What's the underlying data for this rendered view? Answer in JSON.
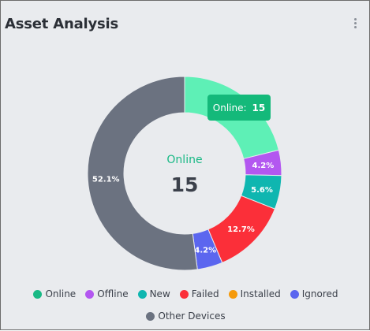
{
  "card": {
    "title": "Asset Analysis",
    "menu_icon": "kebab-menu-icon"
  },
  "center": {
    "label": "Online",
    "value": "15"
  },
  "tooltip": {
    "label": "Online:",
    "value": "15"
  },
  "chart_data": {
    "type": "pie",
    "donut": true,
    "legend_placement": "bottom",
    "slices": [
      {
        "name": "Online",
        "value": 15,
        "label": "",
        "color": "#5ef0b6"
      },
      {
        "name": "Offline",
        "value": 3,
        "label": "4.2%",
        "color": "#b357f0"
      },
      {
        "name": "New",
        "value": 4,
        "label": "5.6%",
        "color": "#0fb6b0"
      },
      {
        "name": "Failed",
        "value": 9,
        "label": "12.7%",
        "color": "#fb2f39"
      },
      {
        "name": "Installed",
        "value": 0,
        "label": "",
        "color": "#f59a0b"
      },
      {
        "name": "Ignored",
        "value": 3,
        "label": "4.2%",
        "color": "#5b66ef"
      },
      {
        "name": "Other Devices",
        "value": 37,
        "label": "52.1%",
        "color": "#6b7280"
      }
    ]
  },
  "legend": [
    {
      "label": "Online",
      "color": "#19b985"
    },
    {
      "label": "Offline",
      "color": "#b357f0"
    },
    {
      "label": "New",
      "color": "#0fb6b0"
    },
    {
      "label": "Failed",
      "color": "#fb2f39"
    },
    {
      "label": "Installed",
      "color": "#f59a0b"
    },
    {
      "label": "Ignored",
      "color": "#5b66ef"
    },
    {
      "label": "Other Devices",
      "color": "#6b7280"
    }
  ]
}
